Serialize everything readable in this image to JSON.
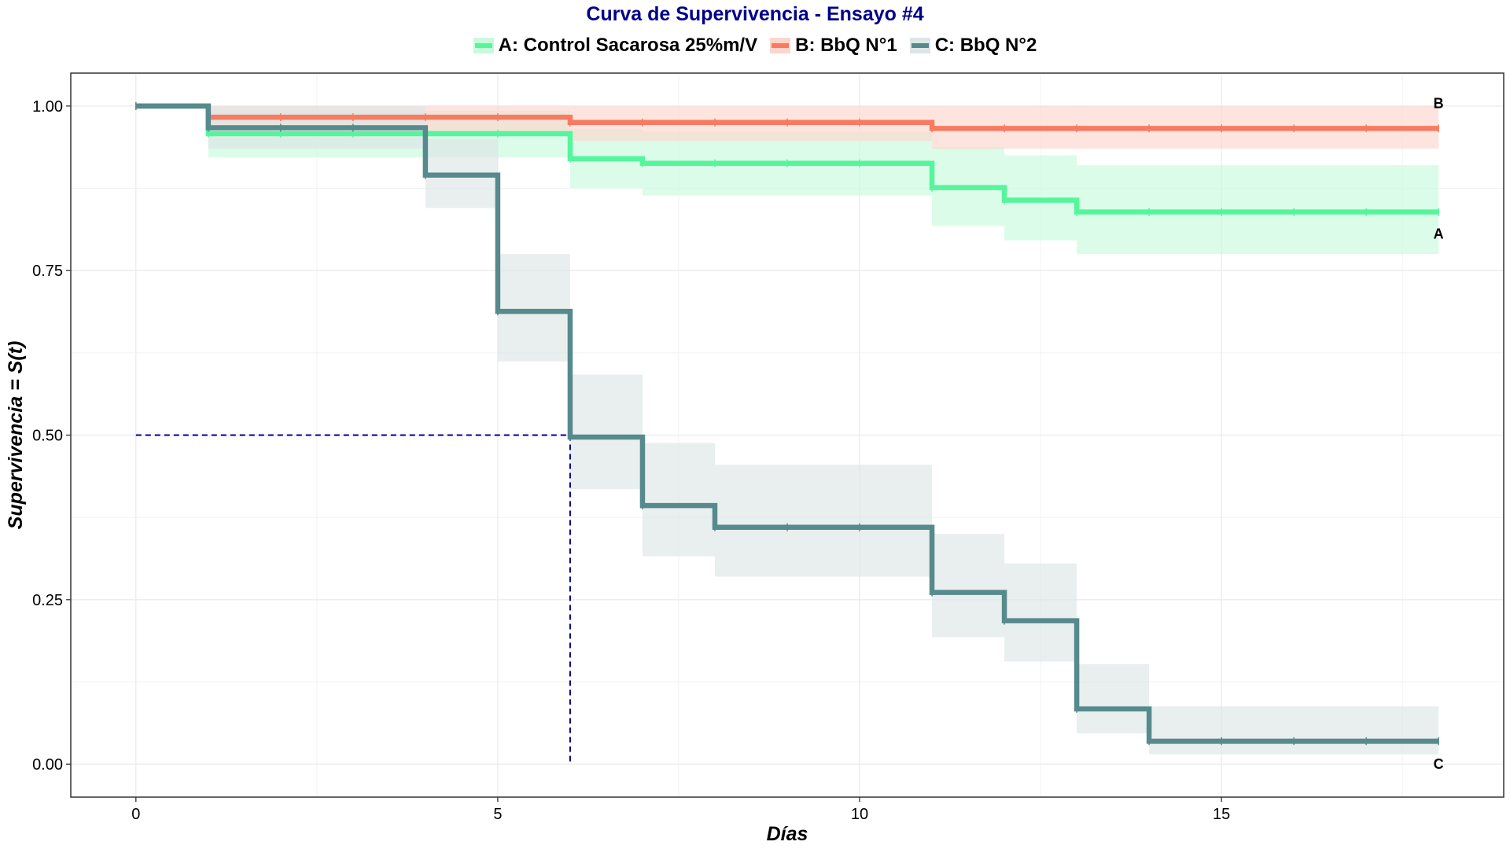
{
  "chart_data": {
    "type": "line",
    "step": true,
    "title": "Curva de Supervivencia - Ensayo #4",
    "xlabel": "Días",
    "ylabel": "Supervivencia = S(t)",
    "xlim": [
      -0.9,
      18.9
    ],
    "ylim": [
      -0.05,
      1.05
    ],
    "xticks": [
      0,
      5,
      10,
      15
    ],
    "yticks": [
      0.0,
      0.25,
      0.5,
      0.75,
      1.0
    ],
    "xtick_labels": [
      "0",
      "5",
      "10",
      "15"
    ],
    "ytick_labels": [
      "0.00",
      "0.25",
      "0.50",
      "0.75",
      "1.00"
    ],
    "grid": true,
    "legend_position": "top",
    "median_reference": {
      "x": 6,
      "y": 0.5,
      "color": "#00008B"
    },
    "series": [
      {
        "name": "A: Control Sacarosa 25%m/V",
        "end_label": "A",
        "color": "#55F59C",
        "band_color": "#C8FADC",
        "x": [
          0,
          1,
          6,
          7,
          11,
          12,
          13,
          18
        ],
        "y": [
          1.0,
          0.958,
          0.92,
          0.913,
          0.876,
          0.857,
          0.839,
          0.839
        ],
        "lower": [
          1.0,
          0.922,
          0.875,
          0.864,
          0.818,
          0.796,
          0.775,
          0.775
        ],
        "upper": [
          1.0,
          0.993,
          0.965,
          0.961,
          0.938,
          0.925,
          0.91,
          0.91
        ]
      },
      {
        "name": "B: BbQ N°1",
        "end_label": "B",
        "color": "#F77B61",
        "band_color": "#FDD5CC",
        "x": [
          0,
          1,
          6,
          11,
          18
        ],
        "y": [
          1.0,
          0.983,
          0.975,
          0.966,
          0.966
        ],
        "lower": [
          1.0,
          0.96,
          0.947,
          0.935,
          0.935
        ],
        "upper": [
          1.0,
          1.0,
          1.0,
          1.0,
          1.0
        ]
      },
      {
        "name": "C: BbQ N°2",
        "end_label": "C",
        "color": "#568A8C",
        "band_color": "#DDE5E6",
        "x": [
          0,
          1,
          4,
          5,
          6,
          7,
          8,
          11,
          12,
          13,
          14,
          18
        ],
        "y": [
          1.0,
          0.967,
          0.895,
          0.688,
          0.497,
          0.393,
          0.36,
          0.261,
          0.218,
          0.084,
          0.035,
          0.035
        ],
        "lower": [
          1.0,
          0.935,
          0.845,
          0.612,
          0.418,
          0.316,
          0.285,
          0.193,
          0.156,
          0.047,
          0.015,
          0.015
        ],
        "upper": [
          1.0,
          1.0,
          0.95,
          0.775,
          0.592,
          0.488,
          0.455,
          0.35,
          0.305,
          0.152,
          0.088,
          0.088
        ]
      }
    ]
  }
}
